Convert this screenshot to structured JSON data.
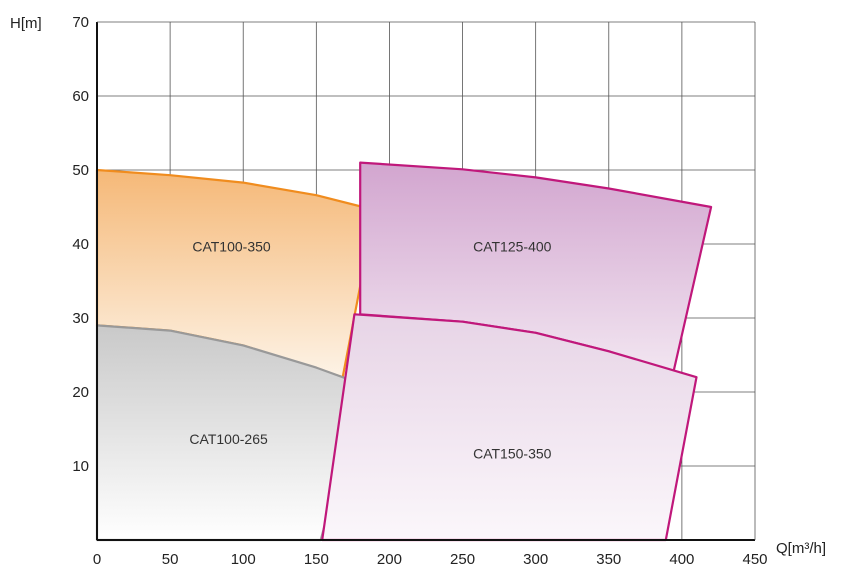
{
  "chart_data": {
    "type": "area",
    "xlabel": "Q[m³/h]",
    "ylabel": "H[m]",
    "xlim": [
      0,
      450
    ],
    "ylim": [
      0,
      70
    ],
    "x_ticks": [
      "0",
      "50",
      "100",
      "150",
      "200",
      "250",
      "300",
      "350",
      "400",
      "450"
    ],
    "y_ticks": [
      "10",
      "20",
      "30",
      "40",
      "50",
      "60",
      "70"
    ],
    "grid": true,
    "regions": [
      {
        "name": "CAT100-350",
        "color": "#f08c1e",
        "fill_top": "#f5b877",
        "fill_bottom": "#fdf3e6",
        "label_at": [
          92,
          39
        ],
        "boundary": [
          [
            0,
            50
          ],
          [
            50,
            49.3
          ],
          [
            100,
            48.3
          ],
          [
            150,
            46.6
          ],
          [
            190,
            44.6
          ],
          [
            168,
            22
          ],
          [
            100,
            26.3
          ],
          [
            50,
            28.3
          ],
          [
            0,
            29
          ]
        ]
      },
      {
        "name": "CAT100-265",
        "color": "#999999",
        "fill_top": "#c9c9c9",
        "fill_bottom": "#ffffff",
        "label_at": [
          90,
          13
        ],
        "boundary": [
          [
            0,
            29
          ],
          [
            50,
            28.3
          ],
          [
            100,
            26.3
          ],
          [
            150,
            23.3
          ],
          [
            182,
            21
          ],
          [
            153,
            0
          ],
          [
            0,
            0
          ]
        ]
      },
      {
        "name": "CAT125-400",
        "color": "#c0187b",
        "fill_top": "#d2a5cf",
        "fill_bottom": "#f2e6f1",
        "label_at": [
          284,
          39
        ],
        "boundary": [
          [
            180,
            51
          ],
          [
            250,
            50.1
          ],
          [
            300,
            49
          ],
          [
            350,
            47.5
          ],
          [
            420,
            45
          ],
          [
            394,
            22.5
          ],
          [
            350,
            25.5
          ],
          [
            300,
            28
          ],
          [
            250,
            29.5
          ],
          [
            180,
            30.5
          ]
        ]
      },
      {
        "name": "CAT150-350",
        "color": "#c0187b",
        "fill_top": "#e7d4e6",
        "fill_bottom": "#fbf7fb",
        "label_at": [
          284,
          11
        ],
        "boundary": [
          [
            176,
            30.5
          ],
          [
            250,
            29.5
          ],
          [
            300,
            28
          ],
          [
            350,
            25.5
          ],
          [
            410,
            22
          ],
          [
            389,
            0
          ],
          [
            154,
            0
          ]
        ]
      }
    ]
  }
}
